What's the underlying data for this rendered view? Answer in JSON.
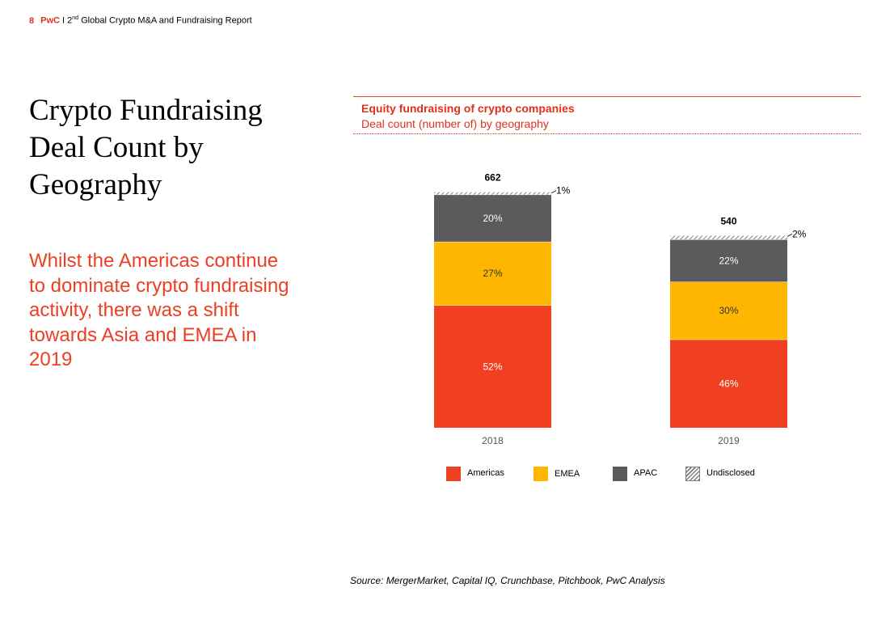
{
  "header": {
    "page_number": "8",
    "brand": "PwC",
    "separator": " I 2",
    "ordinal_suffix": "nd",
    "report_title": " Global Crypto M&A and Fundraising Report"
  },
  "title_lines": [
    "Crypto Fundraising",
    "Deal Count by",
    "Geography"
  ],
  "subtitle_lines": [
    "Whilst the Americas continue",
    "to dominate crypto fundraising",
    "activity, there was a shift",
    "towards Asia and EMEA in",
    "2019"
  ],
  "chart_header": {
    "title": "Equity fundraising of crypto companies",
    "subtitle": "Deal count (number of) by geography"
  },
  "chart_data": {
    "type": "bar",
    "stacked": true,
    "stack_mode": "percent",
    "title": "Equity fundraising of crypto companies",
    "subtitle": "Deal count (number of) by geography",
    "categories": [
      "2018",
      "2019"
    ],
    "totals": [
      662,
      540
    ],
    "total_labels": [
      "662",
      "540"
    ],
    "series": [
      {
        "name": "Americas",
        "values": [
          52,
          46
        ],
        "labels": [
          "52%",
          "46%"
        ],
        "color": "#f03f21",
        "label_color": "#ffffff",
        "pattern": false
      },
      {
        "name": "EMEA",
        "values": [
          27,
          30
        ],
        "labels": [
          "27%",
          "30%"
        ],
        "color": "#ffb600",
        "label_color": "#333333",
        "pattern": false
      },
      {
        "name": "APAC",
        "values": [
          20,
          22
        ],
        "labels": [
          "20%",
          "22%"
        ],
        "color": "#5b5a5c",
        "label_color": "#ffffff",
        "pattern": false
      },
      {
        "name": "Undisclosed",
        "values": [
          1,
          2
        ],
        "labels": [
          "1%",
          "2%"
        ],
        "color": "#7d7d7d",
        "label_color": "#000000",
        "pattern": true
      }
    ],
    "legend_position": "bottom",
    "grid": false
  },
  "source": "Source: MergerMarket, Capital IQ, Crunchbase, Pitchbook, PwC Analysis"
}
